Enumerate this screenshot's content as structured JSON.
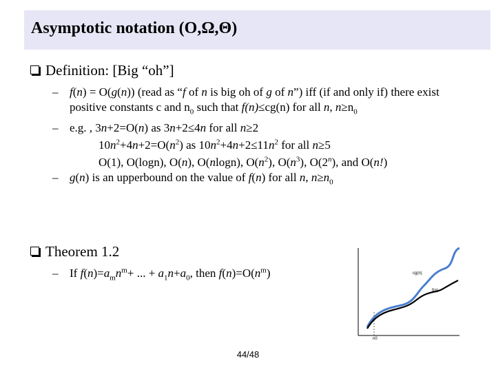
{
  "title": "Asymptotic notation (O,Ω,Θ)",
  "sections": [
    {
      "heading": "Definition: [Big “oh”]",
      "items": [
        {
          "lines": [
            [
              {
                "text": "f",
                "style": "italic"
              },
              "(",
              {
                "text": "n",
                "style": "italic"
              },
              ") = O(",
              {
                "text": "g",
                "style": "italic"
              },
              "(",
              {
                "text": "n",
                "style": "italic"
              },
              ")) (read as “",
              {
                "text": "f",
                "style": "italic"
              },
              " of ",
              {
                "text": "n",
                "style": "italic"
              },
              " is big oh of ",
              {
                "text": "g",
                "style": "italic"
              },
              " of ",
              {
                "text": "n",
                "style": "italic"
              },
              "”) iff (if and only if) there exist positive constants c and n",
              {
                "text": "0",
                "style": "sub"
              },
              " such that ",
              {
                "text": "f(n)",
                "style": "italic"
              },
              "≤cg(n) for all ",
              {
                "text": "n",
                "style": "italic"
              },
              ", ",
              {
                "text": "n",
                "style": "italic"
              },
              "≥n",
              {
                "text": "0",
                "style": "sub"
              }
            ]
          ]
        },
        {
          "lines": [
            [
              "e.g. , 3",
              {
                "text": "n",
                "style": "italic"
              },
              "+2=O(",
              {
                "text": "n",
                "style": "italic"
              },
              ") as 3",
              {
                "text": "n",
                "style": "italic"
              },
              "+2≤4",
              {
                "text": "n",
                "style": "italic"
              },
              " for all ",
              {
                "text": "n",
                "style": "italic"
              },
              "≥2"
            ],
            [
              "10",
              {
                "text": "n",
                "style": "italic"
              },
              {
                "text": "2",
                "style": "sup"
              },
              "+4",
              {
                "text": "n",
                "style": "italic"
              },
              "+2=O(",
              {
                "text": "n",
                "style": "italic"
              },
              {
                "text": "2",
                "style": "sup"
              },
              ") as 10",
              {
                "text": "n",
                "style": "italic"
              },
              {
                "text": "2",
                "style": "sup"
              },
              "+4",
              {
                "text": "n",
                "style": "italic"
              },
              "+2≤11",
              {
                "text": "n",
                "style": "italic"
              },
              {
                "text": "2",
                "style": "sup"
              },
              " for all ",
              {
                "text": "n",
                "style": "italic"
              },
              "≥5"
            ],
            [
              "O(1), O(logn), O(",
              {
                "text": "n",
                "style": "italic"
              },
              "), O(",
              {
                "text": "n",
                "style": "italic"
              },
              "logn), O(",
              {
                "text": "n",
                "style": "italic"
              },
              {
                "text": "2",
                "style": "sup"
              },
              "), O(",
              {
                "text": "n",
                "style": "italic"
              },
              {
                "text": "3",
                "style": "sup"
              },
              "), O(2",
              {
                "text": "n",
                "style": "italic-sup"
              },
              "), and O(",
              {
                "text": "n!",
                "style": "italic"
              },
              ")"
            ]
          ]
        },
        {
          "lines": [
            [
              {
                "text": "g",
                "style": "italic"
              },
              "(",
              {
                "text": "n",
                "style": "italic"
              },
              ") is an upperbound on the value of ",
              {
                "text": "f",
                "style": "italic"
              },
              "(",
              {
                "text": "n",
                "style": "italic"
              },
              ") for all ",
              {
                "text": "n",
                "style": "italic"
              },
              ", ",
              {
                "text": "n",
                "style": "italic"
              },
              "≥",
              {
                "text": "n",
                "style": "italic"
              },
              {
                "text": "0",
                "style": "sub"
              }
            ]
          ]
        }
      ]
    },
    {
      "heading": "Theorem 1.2",
      "items": [
        {
          "lines": [
            [
              "If ",
              {
                "text": "f",
                "style": "italic"
              },
              "(",
              {
                "text": "n",
                "style": "italic"
              },
              ")=",
              {
                "text": "a",
                "style": "italic"
              },
              {
                "text": "m",
                "style": "sub"
              },
              {
                "text": "n",
                "style": "italic"
              },
              {
                "text": "m",
                "style": "sup"
              },
              "+ ... + ",
              {
                "text": "a",
                "style": "italic"
              },
              {
                "text": "1",
                "style": "sub"
              },
              {
                "text": "n",
                "style": "italic"
              },
              "+",
              {
                "text": "a",
                "style": "italic"
              },
              {
                "text": "0",
                "style": "sub"
              },
              ", then ",
              {
                "text": "f",
                "style": "italic"
              },
              "(",
              {
                "text": "n",
                "style": "italic"
              },
              ")=O(",
              {
                "text": "n",
                "style": "italic"
              },
              {
                "text": "m",
                "style": "sup"
              },
              ")"
            ]
          ]
        }
      ]
    }
  ],
  "figure": {
    "labels": [
      "cg(n)",
      "f(n)",
      "n0"
    ]
  },
  "page_number": "44/48"
}
